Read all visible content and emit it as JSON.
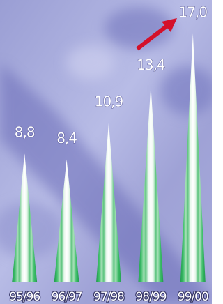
{
  "chart_data": {
    "type": "spike",
    "categories": [
      "95/96",
      "96/97",
      "97/98",
      "98/99",
      "99/00"
    ],
    "values": [
      8.8,
      8.4,
      10.9,
      13.4,
      17.0
    ],
    "value_labels": [
      "8,8",
      "8,4",
      "10,9",
      "13,4",
      "17,0"
    ],
    "color": "#2fae5a"
  }
}
